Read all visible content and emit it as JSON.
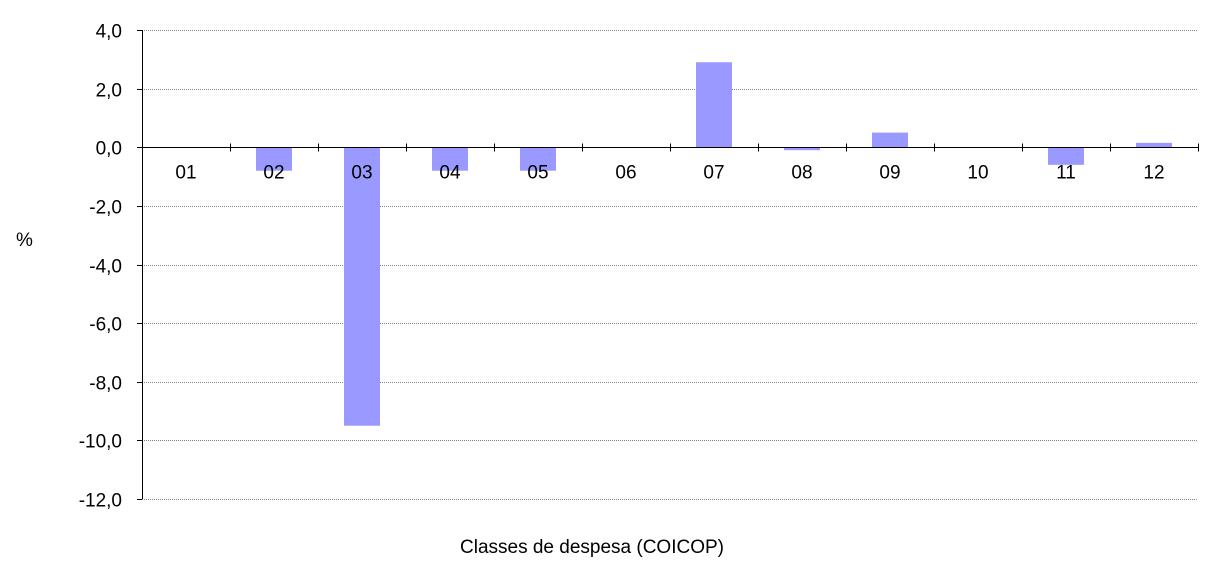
{
  "chart_data": {
    "type": "bar",
    "title": "",
    "xlabel": "Classes de despesa (COICOP)",
    "ylabel": "%",
    "categories": [
      "01",
      "02",
      "03",
      "04",
      "05",
      "06",
      "07",
      "08",
      "09",
      "10",
      "11",
      "12"
    ],
    "values": [
      0.0,
      -0.8,
      -9.5,
      -0.8,
      -0.8,
      0.0,
      2.9,
      -0.1,
      0.5,
      0.0,
      -0.6,
      0.15
    ],
    "ylim": [
      -12,
      4
    ],
    "yticks": [
      4,
      2,
      0,
      -2,
      -4,
      -6,
      -8,
      -10,
      -12
    ],
    "ytick_labels": [
      "4,0",
      "2,0",
      "0,0",
      "-2,0",
      "-4,0",
      "-6,0",
      "-8,0",
      "-10,0",
      "-12,0"
    ],
    "grid": true,
    "legend": "none",
    "colors": {
      "bar": "#9999ff",
      "grid": "#808080",
      "axis": "#000000"
    }
  }
}
